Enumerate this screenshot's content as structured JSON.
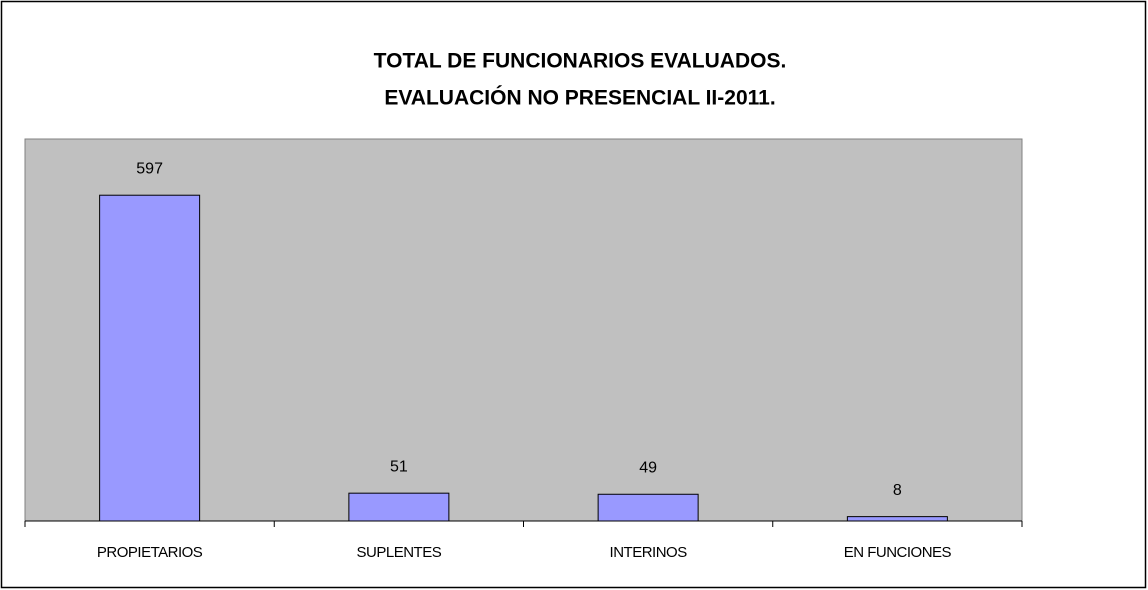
{
  "chart_data": {
    "type": "bar",
    "title": [
      "TOTAL DE FUNCIONARIOS EVALUADOS.",
      "EVALUACIÓN NO PRESENCIAL II-2011."
    ],
    "categories": [
      "PROPIETARIOS",
      "SUPLENTES",
      "INTERINOS",
      "EN FUNCIONES"
    ],
    "values": [
      597,
      51,
      49,
      8
    ],
    "color": "#9999ff",
    "ylim": [
      0,
      700
    ],
    "grid": false
  }
}
